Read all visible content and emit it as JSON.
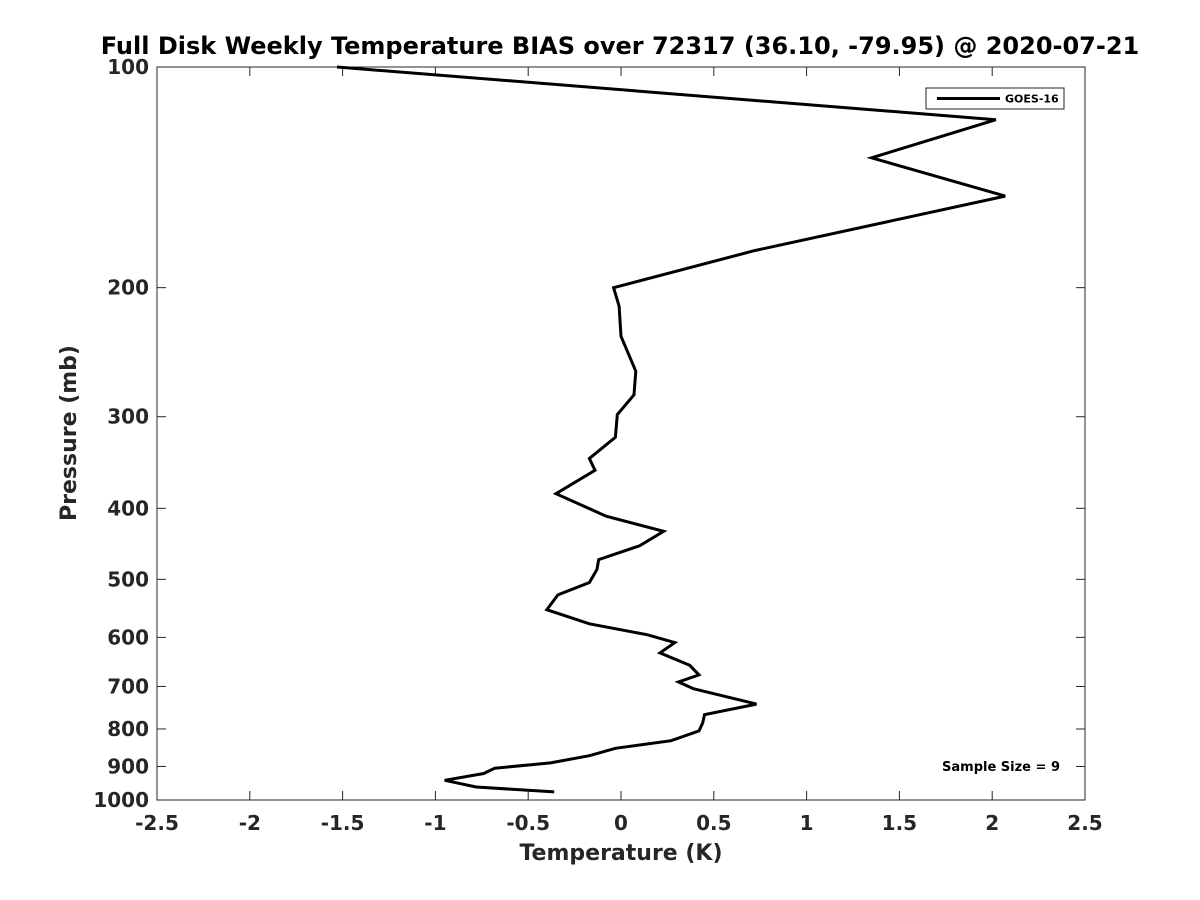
{
  "chart_data": {
    "type": "line",
    "title": "Full Disk Weekly Temperature BIAS over 72317 (36.10, -79.95) @ 2020-07-21",
    "xlabel": "Temperature (K)",
    "ylabel": "Pressure (mb)",
    "xlim": [
      -2.5,
      2.5
    ],
    "ylim": [
      100,
      1000
    ],
    "y_scale": "log",
    "y_reversed": true,
    "grid": false,
    "legend_position": "top-right",
    "x_ticks": [
      "-2.5",
      "-2",
      "-1.5",
      "-1",
      "-0.5",
      "0",
      "0.5",
      "1",
      "1.5",
      "2",
      "2.5"
    ],
    "y_ticks": [
      "100",
      "200",
      "300",
      "400",
      "500",
      "600",
      "700",
      "800",
      "900",
      "1000"
    ],
    "annotation": "Sample Size = 9",
    "series": [
      {
        "name": "GOES-16",
        "color": "#000000",
        "x": [
          -1.53,
          2.02,
          1.35,
          2.07,
          0.72,
          -0.04,
          -0.01,
          0.0,
          0.08,
          0.07,
          -0.02,
          -0.03,
          -0.17,
          -0.14,
          -0.35,
          -0.08,
          0.23,
          0.1,
          -0.12,
          -0.13,
          -0.17,
          -0.34,
          -0.4,
          -0.17,
          0.14,
          0.29,
          0.21,
          0.37,
          0.42,
          0.31,
          0.39,
          0.73,
          0.45,
          0.44,
          0.42,
          0.27,
          -0.03,
          -0.17,
          -0.38,
          -0.68,
          -0.74,
          -0.95,
          -0.78,
          -0.36
        ],
        "y": [
          100,
          118,
          133,
          150,
          178,
          200,
          212,
          233,
          260,
          280,
          298,
          320,
          342,
          355,
          382,
          410,
          430,
          450,
          470,
          485,
          505,
          525,
          550,
          575,
          595,
          610,
          630,
          655,
          675,
          690,
          705,
          740,
          765,
          785,
          805,
          830,
          850,
          870,
          890,
          905,
          920,
          940,
          960,
          975
        ]
      }
    ]
  }
}
